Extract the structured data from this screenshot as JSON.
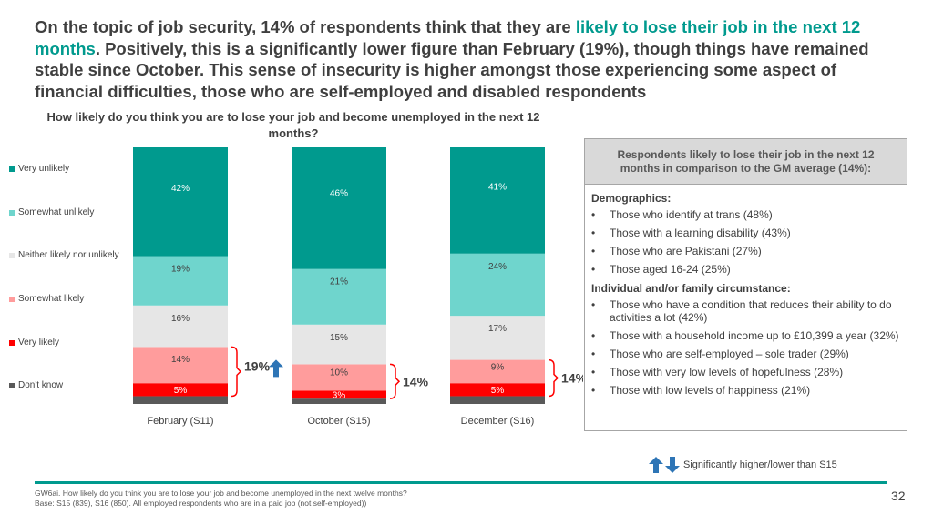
{
  "headline": {
    "part1": "On the topic of job security, 14% of respondents think that they are ",
    "highlight": "likely to lose their job in the next 12 months",
    "part2": ". Positively, this is a significantly lower figure than February (19%), though things have remained stable since October. This sense of insecurity is higher amongst those experiencing some aspect of financial difficulties, those who are self-employed and disabled respondents"
  },
  "colors": {
    "very_unlikely": "#009a8e",
    "somewhat_unlikely": "#6fd5cd",
    "neither": "#e6e6e6",
    "somewhat_likely": "#ff9c9c",
    "very_likely": "#ff0000",
    "dont_know": "#595959",
    "highlight": "#009a8e",
    "arrow_blue": "#2e75b6"
  },
  "chart_data": {
    "type": "bar",
    "stacked": true,
    "title": "How likely do you think you are to lose your job and become unemployed in the next 12 months?",
    "categories": [
      "February (S11)",
      "October (S15)",
      "December (S16)"
    ],
    "series": [
      {
        "key": "very_unlikely",
        "name": "Very unlikely",
        "values": [
          42,
          46,
          41
        ],
        "labels": [
          "42%",
          "46%",
          "41%"
        ]
      },
      {
        "key": "somewhat_unlikely",
        "name": "Somewhat unlikely",
        "values": [
          19,
          21,
          24
        ],
        "labels": [
          "19%",
          "21%",
          "24%"
        ]
      },
      {
        "key": "neither",
        "name": "Neither likely nor unlikely",
        "values": [
          16,
          15,
          17
        ],
        "labels": [
          "16%",
          "15%",
          "17%"
        ]
      },
      {
        "key": "somewhat_likely",
        "name": "Somewhat likely",
        "values": [
          14,
          10,
          9
        ],
        "labels": [
          "14%",
          "10%",
          "9%"
        ]
      },
      {
        "key": "very_likely",
        "name": "Very likely",
        "values": [
          5,
          3,
          5
        ],
        "labels": [
          "5%",
          "3%",
          "5%"
        ]
      },
      {
        "key": "dont_know",
        "name": "Don't know",
        "values": [
          3,
          2,
          3
        ],
        "labels": [
          "",
          "",
          ""
        ]
      }
    ],
    "likely_totals": [
      "19%",
      "14%",
      "14%"
    ],
    "likely_total_arrows": [
      "up",
      "",
      ""
    ],
    "ylim": [
      0,
      100
    ]
  },
  "sidebar": {
    "title": "Respondents likely to lose their job in the next 12 months in comparison to the GM average (14%):",
    "bullet": "•",
    "sections": [
      {
        "heading": "Demographics:",
        "items": [
          "Those who identify at trans (48%)",
          "Those with a learning disability (43%)",
          "Those who are Pakistani (27%)",
          "Those aged 16-24 (25%)"
        ]
      },
      {
        "heading": "Individual and/or family circumstance:",
        "items": [
          "Those who have a condition that reduces their ability to do activities a lot (42%)",
          "Those with a household income up to £10,399 a year (32%)",
          "Those who are self-employed – sole trader (29%)",
          "Those with very low levels of hopefulness (28%)",
          "Those with low levels of happiness (21%)"
        ]
      }
    ]
  },
  "sig_legend": "Significantly higher/lower than S15",
  "footnote": {
    "line1": "GW6ai. How likely do you think you are to lose your job and become unemployed in the next twelve months?",
    "line2": "Base: S15 (839), S16 (850). All employed respondents who are in a paid job (not self-employed))"
  },
  "page_number": "32"
}
